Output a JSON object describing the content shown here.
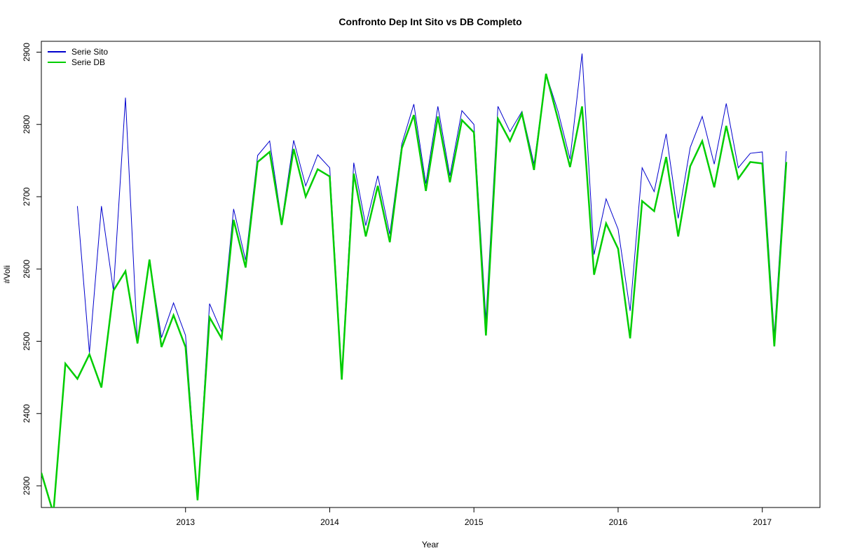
{
  "chart_data": {
    "type": "line",
    "title": "Confronto Dep Int Sito vs DB Completo",
    "xlabel": "Year",
    "ylabel": "#Voli",
    "xlim": [
      2012.0,
      2017.4
    ],
    "ylim": [
      2270,
      2915
    ],
    "x_ticks": [
      2013,
      2014,
      2015,
      2016,
      2017
    ],
    "y_ticks": [
      2300,
      2400,
      2500,
      2600,
      2700,
      2800,
      2900
    ],
    "grid": false,
    "legend_position": "top-left",
    "x_start": 2012.0,
    "x_step": 0.0833333,
    "series": [
      {
        "name": "Serie Sito",
        "color": "#0000CD",
        "stroke_width": 1,
        "values": [
          2315,
          2265,
          null,
          2687,
          2484,
          2687,
          2570,
          2837,
          2497,
          2613,
          2505,
          2553,
          2508,
          2283,
          2552,
          2513,
          2683,
          2612,
          2757,
          2777,
          2665,
          2778,
          2715,
          2758,
          2740,
          2455,
          2747,
          2660,
          2729,
          2648,
          2773,
          2828,
          2718,
          2825,
          2729,
          2819,
          2800,
          2530,
          2825,
          2790,
          2818,
          2745,
          2870,
          2818,
          2752,
          2898,
          2620,
          2697,
          2655,
          2542,
          2740,
          2707,
          2787,
          2670,
          2768,
          2811,
          2745,
          2829,
          2740,
          2760,
          2762,
          2508,
          2763
        ]
      },
      {
        "name": "Serie DB",
        "color": "#00CD00",
        "stroke_width": 2.5,
        "values": [
          2318,
          2262,
          2469,
          2448,
          2482,
          2436,
          2570,
          2597,
          2497,
          2613,
          2492,
          2536,
          2492,
          2280,
          2533,
          2504,
          2668,
          2602,
          2748,
          2762,
          2661,
          2766,
          2700,
          2738,
          2728,
          2447,
          2732,
          2645,
          2715,
          2637,
          2767,
          2813,
          2708,
          2811,
          2720,
          2806,
          2789,
          2508,
          2808,
          2777,
          2815,
          2737,
          2870,
          2807,
          2741,
          2825,
          2592,
          2663,
          2628,
          2504,
          2694,
          2680,
          2755,
          2645,
          2742,
          2777,
          2713,
          2798,
          2725,
          2748,
          2746,
          2493,
          2748
        ]
      }
    ]
  }
}
